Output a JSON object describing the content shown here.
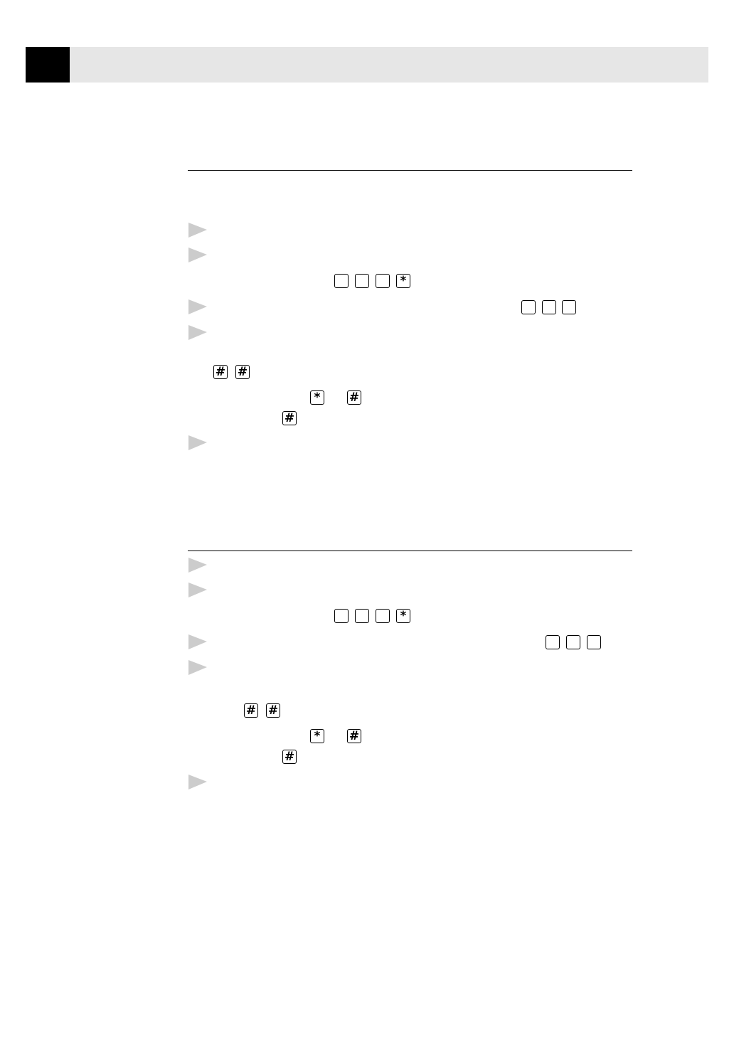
{
  "section_1": {
    "keys": [
      "*",
      "#",
      "#",
      "*",
      "#",
      "#"
    ]
  },
  "section_2": {
    "keys": [
      "*",
      "#",
      "#",
      "*",
      "#",
      "#"
    ]
  }
}
